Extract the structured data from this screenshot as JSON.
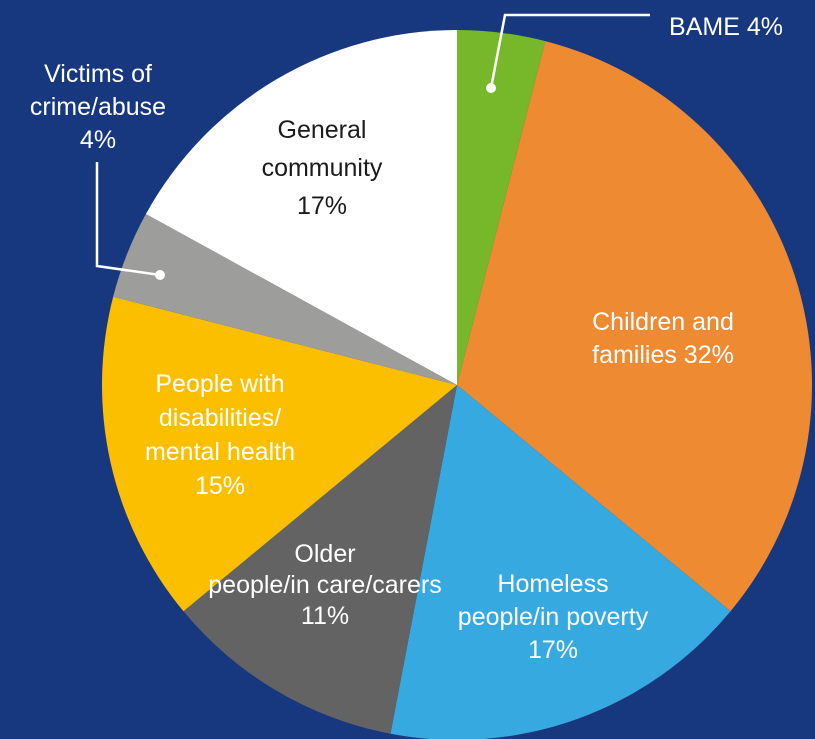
{
  "chart_data": {
    "type": "pie",
    "background": "#17387f",
    "leader_color": "#ffffff",
    "slices": [
      {
        "label": "BAME 4%",
        "value": 4,
        "color": "#76b82a",
        "text_color": "#ffffff"
      },
      {
        "label": "Children and families 32%",
        "value": 32,
        "color": "#ee8a31",
        "text_color": "#ffffff"
      },
      {
        "label": "Homeless people/in poverty 17%",
        "value": 17,
        "color": "#36a9e1",
        "text_color": "#ffffff"
      },
      {
        "label": "Older people/in care/carers 11%",
        "value": 11,
        "color": "#636363",
        "text_color": "#ffffff"
      },
      {
        "label": "People with disabilities/ mental health 15%",
        "value": 15,
        "color": "#fbbf00",
        "text_color": "#ffffff"
      },
      {
        "label": "Victims of crime/abuse 4%",
        "value": 4,
        "color": "#9d9d9c",
        "text_color": "#ffffff"
      },
      {
        "label": "General community 17%",
        "value": 17,
        "color": "#ffffff",
        "text_color": "#1b1b1b"
      }
    ]
  }
}
